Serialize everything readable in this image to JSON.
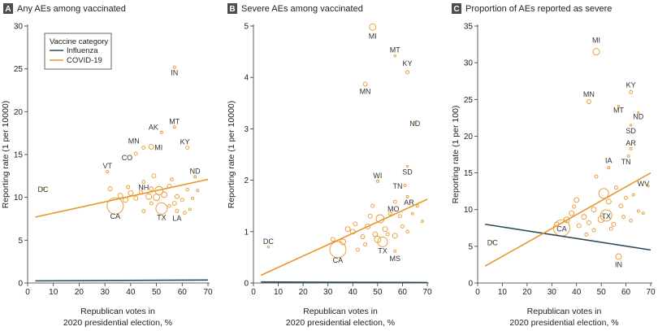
{
  "colors": {
    "influenza": "#2f4b5c",
    "covid": "#e8972b",
    "letter_box": "#4d4d4d"
  },
  "legend": {
    "title": "Vaccine category",
    "items": [
      {
        "label": "Influenza",
        "color": "#2f4b5c"
      },
      {
        "label": "COVID-19",
        "color": "#e8972b"
      }
    ]
  },
  "chart_data": [
    {
      "type": "scatter",
      "letter": "A",
      "title": "Any AEs among vaccinated",
      "xlabel": [
        "Republican votes in",
        "2020 presidential election, %"
      ],
      "ylabel": "Reporting rate (1 per 10000)",
      "xlim": [
        0,
        70
      ],
      "ylim": [
        0,
        30
      ],
      "xticks": [
        0,
        10,
        20,
        30,
        40,
        50,
        60,
        70
      ],
      "yticks": [
        0,
        5,
        10,
        15,
        20,
        25,
        30
      ],
      "trend": {
        "covid": [
          [
            3,
            7.7
          ],
          [
            70,
            12.1
          ]
        ],
        "influenza": [
          [
            3,
            0.25
          ],
          [
            70,
            0.35
          ]
        ]
      },
      "labeled_points": [
        {
          "state": "IN",
          "x": 57,
          "y": 25.2,
          "r": 1.5
        },
        {
          "state": "AK",
          "x": 52,
          "y": 17.6,
          "r": 1.5
        },
        {
          "state": "MT",
          "x": 57,
          "y": 18.2,
          "r": 1.5
        },
        {
          "state": "KY",
          "x": 62,
          "y": 15.8,
          "r": 2
        },
        {
          "state": "MN",
          "x": 45,
          "y": 15.8,
          "r": 2
        },
        {
          "state": "MI",
          "x": 48,
          "y": 15.9,
          "r": 3
        },
        {
          "state": "CO",
          "x": 42,
          "y": 15.1,
          "r": 2
        },
        {
          "state": "ND",
          "x": 65,
          "y": 12.4,
          "r": 1.5
        },
        {
          "state": "VT",
          "x": 31,
          "y": 13.0,
          "r": 1.5
        },
        {
          "state": "NH",
          "x": 45,
          "y": 11.8,
          "r": 2
        },
        {
          "state": "DC",
          "x": 6,
          "y": 11.0,
          "r": 1.5
        },
        {
          "state": "CA",
          "x": 34,
          "y": 9.0,
          "r": 10
        },
        {
          "state": "TX",
          "x": 52,
          "y": 8.7,
          "r": 7
        },
        {
          "state": "LA",
          "x": 58,
          "y": 8.4,
          "r": 2
        }
      ],
      "other_points": [
        {
          "x": 32,
          "y": 11.0,
          "r": 2.5
        },
        {
          "x": 36,
          "y": 10.2,
          "r": 3
        },
        {
          "x": 38,
          "y": 9.7,
          "r": 3
        },
        {
          "x": 40,
          "y": 10.5,
          "r": 3
        },
        {
          "x": 42,
          "y": 9.9,
          "r": 2.5
        },
        {
          "x": 44,
          "y": 10.6,
          "r": 2
        },
        {
          "x": 47,
          "y": 10.1,
          "r": 3.5
        },
        {
          "x": 48,
          "y": 11.0,
          "r": 2.5
        },
        {
          "x": 49,
          "y": 12.5,
          "r": 2.5
        },
        {
          "x": 50,
          "y": 10.0,
          "r": 4
        },
        {
          "x": 51,
          "y": 10.8,
          "r": 5
        },
        {
          "x": 53,
          "y": 10.3,
          "r": 3.5
        },
        {
          "x": 55,
          "y": 11.3,
          "r": 2.5
        },
        {
          "x": 56,
          "y": 12.1,
          "r": 1.8
        },
        {
          "x": 57,
          "y": 9.3,
          "r": 2.5
        },
        {
          "x": 58,
          "y": 10.1,
          "r": 2.5
        },
        {
          "x": 60,
          "y": 9.7,
          "r": 2
        },
        {
          "x": 62,
          "y": 10.9,
          "r": 1.8
        },
        {
          "x": 64,
          "y": 9.9,
          "r": 1.5
        },
        {
          "x": 66,
          "y": 10.8,
          "r": 1.5
        },
        {
          "x": 61,
          "y": 8.2,
          "r": 1.8
        },
        {
          "x": 45,
          "y": 8.4,
          "r": 2
        },
        {
          "x": 48,
          "y": 9.3,
          "r": 2
        },
        {
          "x": 55,
          "y": 9.0,
          "r": 1.8
        },
        {
          "x": 39,
          "y": 11.2,
          "r": 2
        },
        {
          "x": 63,
          "y": 8.6,
          "r": 1.5
        }
      ]
    },
    {
      "type": "scatter",
      "letter": "B",
      "title": "Severe AEs among vaccinated",
      "xlabel": [
        "Republican votes in",
        "2020 presidential election, %"
      ],
      "ylabel": "Reporting rate (1 per 10000)",
      "xlim": [
        0,
        70
      ],
      "ylim": [
        0,
        5
      ],
      "xticks": [
        0,
        10,
        20,
        30,
        40,
        50,
        60,
        70
      ],
      "yticks": [
        0,
        1,
        2,
        3,
        4,
        5
      ],
      "trend": {
        "covid": [
          [
            3,
            0.15
          ],
          [
            70,
            1.63
          ]
        ],
        "influenza": [
          [
            3,
            0.02
          ],
          [
            70,
            0.01
          ]
        ]
      },
      "labeled_points": [
        {
          "state": "MI",
          "x": 48,
          "y": 4.98,
          "r": 4
        },
        {
          "state": "MT",
          "x": 57,
          "y": 4.42,
          "r": 1.2
        },
        {
          "state": "KY",
          "x": 62,
          "y": 4.1,
          "r": 2
        },
        {
          "state": "MN",
          "x": 45,
          "y": 3.87,
          "r": 2.5
        },
        {
          "state": "ND",
          "x": 65,
          "y": 3.12,
          "r": 1.2
        },
        {
          "state": "SD",
          "x": 62,
          "y": 2.27,
          "r": 1.2
        },
        {
          "state": "WI",
          "x": 50,
          "y": 1.98,
          "r": 1.5
        },
        {
          "state": "TN",
          "x": 61,
          "y": 1.9,
          "r": 1.5
        },
        {
          "state": "AR",
          "x": 62,
          "y": 1.68,
          "r": 1.5
        },
        {
          "state": "MO",
          "x": 57,
          "y": 1.58,
          "r": 2
        },
        {
          "state": "DC",
          "x": 6,
          "y": 0.7,
          "r": 1.2
        },
        {
          "state": "CA",
          "x": 34,
          "y": 0.65,
          "r": 10
        },
        {
          "state": "TX",
          "x": 52,
          "y": 0.8,
          "r": 6
        },
        {
          "state": "MS",
          "x": 57,
          "y": 0.62,
          "r": 1.5
        }
      ],
      "other_points": [
        {
          "x": 32,
          "y": 0.85,
          "r": 2.5
        },
        {
          "x": 36,
          "y": 0.8,
          "r": 3.5
        },
        {
          "x": 38,
          "y": 1.05,
          "r": 3
        },
        {
          "x": 40,
          "y": 1.0,
          "r": 3
        },
        {
          "x": 41,
          "y": 1.15,
          "r": 2.5
        },
        {
          "x": 44,
          "y": 0.9,
          "r": 2.5
        },
        {
          "x": 46,
          "y": 1.1,
          "r": 3
        },
        {
          "x": 47,
          "y": 1.3,
          "r": 2.5
        },
        {
          "x": 49,
          "y": 0.95,
          "r": 3
        },
        {
          "x": 50,
          "y": 0.85,
          "r": 4
        },
        {
          "x": 51,
          "y": 1.25,
          "r": 5
        },
        {
          "x": 53,
          "y": 1.05,
          "r": 3
        },
        {
          "x": 54,
          "y": 0.95,
          "r": 2
        },
        {
          "x": 55,
          "y": 1.35,
          "r": 2
        },
        {
          "x": 57,
          "y": 0.92,
          "r": 3
        },
        {
          "x": 59,
          "y": 1.3,
          "r": 2
        },
        {
          "x": 60,
          "y": 1.1,
          "r": 2
        },
        {
          "x": 62,
          "y": 1.0,
          "r": 1.8
        },
        {
          "x": 64,
          "y": 1.35,
          "r": 1.5
        },
        {
          "x": 66,
          "y": 1.5,
          "r": 1.5
        },
        {
          "x": 45,
          "y": 0.75,
          "r": 2
        },
        {
          "x": 48,
          "y": 1.5,
          "r": 2
        },
        {
          "x": 42,
          "y": 0.65,
          "r": 2
        },
        {
          "x": 68,
          "y": 1.2,
          "r": 1.5
        }
      ]
    },
    {
      "type": "scatter",
      "letter": "C",
      "title": "Proportion of AEs reported as severe",
      "xlabel": [
        "Republican votes in",
        "2020 presidential election, %"
      ],
      "ylabel": "Reporting rate (1 per 100)",
      "xlim": [
        0,
        70
      ],
      "ylim": [
        0,
        35
      ],
      "xticks": [
        0,
        10,
        20,
        30,
        40,
        50,
        60,
        70
      ],
      "yticks": [
        0,
        5,
        10,
        15,
        20,
        25,
        30,
        35
      ],
      "trend": {
        "covid": [
          [
            3,
            2.3
          ],
          [
            70,
            15.0
          ]
        ],
        "influenza": [
          [
            3,
            8.0
          ],
          [
            70,
            4.5
          ]
        ]
      },
      "labeled_points": [
        {
          "state": "MI",
          "x": 48,
          "y": 31.5,
          "r": 4
        },
        {
          "state": "KY",
          "x": 62,
          "y": 26.0,
          "r": 2
        },
        {
          "state": "MN",
          "x": 45,
          "y": 24.7,
          "r": 2.5
        },
        {
          "state": "MT",
          "x": 57,
          "y": 24.1,
          "r": 1.2
        },
        {
          "state": "ND",
          "x": 65,
          "y": 23.2,
          "r": 1.2
        },
        {
          "state": "SD",
          "x": 62,
          "y": 21.5,
          "r": 1.2
        },
        {
          "state": "AR",
          "x": 62,
          "y": 18.3,
          "r": 1.5
        },
        {
          "state": "TN",
          "x": 61,
          "y": 17.3,
          "r": 1.5
        },
        {
          "state": "IA",
          "x": 53,
          "y": 15.7,
          "r": 1.5
        },
        {
          "state": "WV",
          "x": 69,
          "y": 13.2,
          "r": 1.2
        },
        {
          "state": "DC",
          "x": 6,
          "y": 5.6,
          "r": 1.2
        },
        {
          "state": "CA",
          "x": 34,
          "y": 7.5,
          "r": 10
        },
        {
          "state": "TX",
          "x": 52,
          "y": 9.2,
          "r": 7
        },
        {
          "state": "IN",
          "x": 57,
          "y": 3.6,
          "r": 3.5
        }
      ],
      "other_points": [
        {
          "x": 32,
          "y": 8.0,
          "r": 2.5
        },
        {
          "x": 36,
          "y": 8.6,
          "r": 3.5
        },
        {
          "x": 38,
          "y": 9.5,
          "r": 3
        },
        {
          "x": 40,
          "y": 11.3,
          "r": 3
        },
        {
          "x": 41,
          "y": 7.8,
          "r": 2.5
        },
        {
          "x": 43,
          "y": 9.0,
          "r": 3
        },
        {
          "x": 45,
          "y": 8.2,
          "r": 2.5
        },
        {
          "x": 47,
          "y": 10.0,
          "r": 3
        },
        {
          "x": 48,
          "y": 14.5,
          "r": 2
        },
        {
          "x": 50,
          "y": 8.7,
          "r": 4
        },
        {
          "x": 51,
          "y": 12.2,
          "r": 6
        },
        {
          "x": 53,
          "y": 11.1,
          "r": 3
        },
        {
          "x": 55,
          "y": 8.0,
          "r": 2.5
        },
        {
          "x": 56,
          "y": 13.0,
          "r": 2
        },
        {
          "x": 58,
          "y": 10.5,
          "r": 2.5
        },
        {
          "x": 59,
          "y": 9.0,
          "r": 2
        },
        {
          "x": 60,
          "y": 11.6,
          "r": 2
        },
        {
          "x": 62,
          "y": 8.5,
          "r": 1.8
        },
        {
          "x": 63,
          "y": 12.0,
          "r": 1.5
        },
        {
          "x": 65,
          "y": 9.8,
          "r": 1.5
        },
        {
          "x": 44,
          "y": 6.6,
          "r": 2
        },
        {
          "x": 47,
          "y": 7.2,
          "r": 2
        },
        {
          "x": 54,
          "y": 7.4,
          "r": 2
        },
        {
          "x": 67,
          "y": 9.5,
          "r": 1.5
        },
        {
          "x": 39,
          "y": 10.4,
          "r": 2
        }
      ]
    }
  ]
}
